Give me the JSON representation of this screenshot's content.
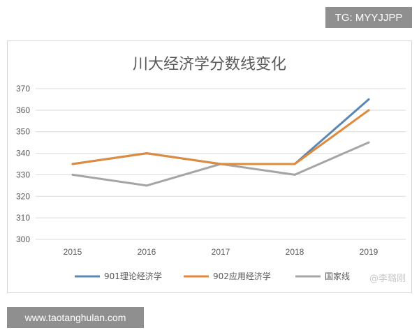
{
  "watermarks": {
    "top": "TG: MYYJJPP",
    "bottom": "www.taotanghulan.com",
    "overlay": "@李璐刚"
  },
  "chart_data": {
    "type": "line",
    "title": "川大经济学分数线变化",
    "x": [
      "2015",
      "2016",
      "2017",
      "2018",
      "2019"
    ],
    "ylim": [
      300,
      370
    ],
    "yticks": [
      300,
      310,
      320,
      330,
      340,
      350,
      360,
      370
    ],
    "grid": true,
    "legend_position": "bottom",
    "series": [
      {
        "name": "901理论经济学",
        "color": "#5b87b2",
        "values": [
          335,
          340,
          335,
          335,
          365
        ]
      },
      {
        "name": "902应用经济学",
        "color": "#e08a3e",
        "values": [
          335,
          340,
          335,
          335,
          360
        ]
      },
      {
        "name": "国家线",
        "color": "#a5a5a5",
        "values": [
          330,
          325,
          335,
          330,
          345
        ]
      }
    ]
  }
}
